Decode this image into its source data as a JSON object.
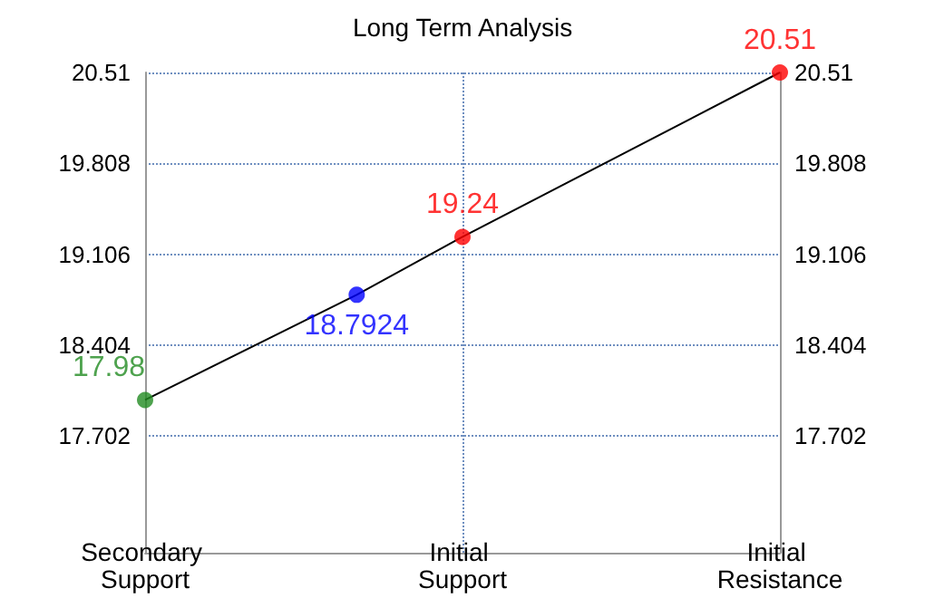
{
  "chart_data": {
    "type": "line",
    "title": "Long Term Analysis",
    "categories": [
      "Secondary Support",
      null,
      null,
      "Initial Support",
      null,
      null,
      "Initial Resistance"
    ],
    "ylim": [
      16.8,
      20.51
    ],
    "yticks": [
      17.702,
      18.404,
      19.106,
      19.808,
      20.51
    ],
    "y2lim": [
      16.8,
      20.51
    ],
    "y2ticks": [
      17.702,
      18.404,
      19.106,
      19.808,
      20.51
    ],
    "grid": true,
    "series": [
      {
        "color": "#000000",
        "marker": "none",
        "values": [
          17.98,
          null,
          18.7924,
          19.24,
          null,
          null,
          20.51
        ]
      },
      {
        "type": "scatter",
        "colors": [
          "#228b22",
          null,
          "#0000ff",
          "#ff0000",
          null,
          null,
          "#ff0000"
        ],
        "marker": "circle",
        "data_labels": true,
        "values": [
          17.98,
          null,
          18.7924,
          19.24,
          null,
          null,
          20.51
        ]
      }
    ]
  }
}
